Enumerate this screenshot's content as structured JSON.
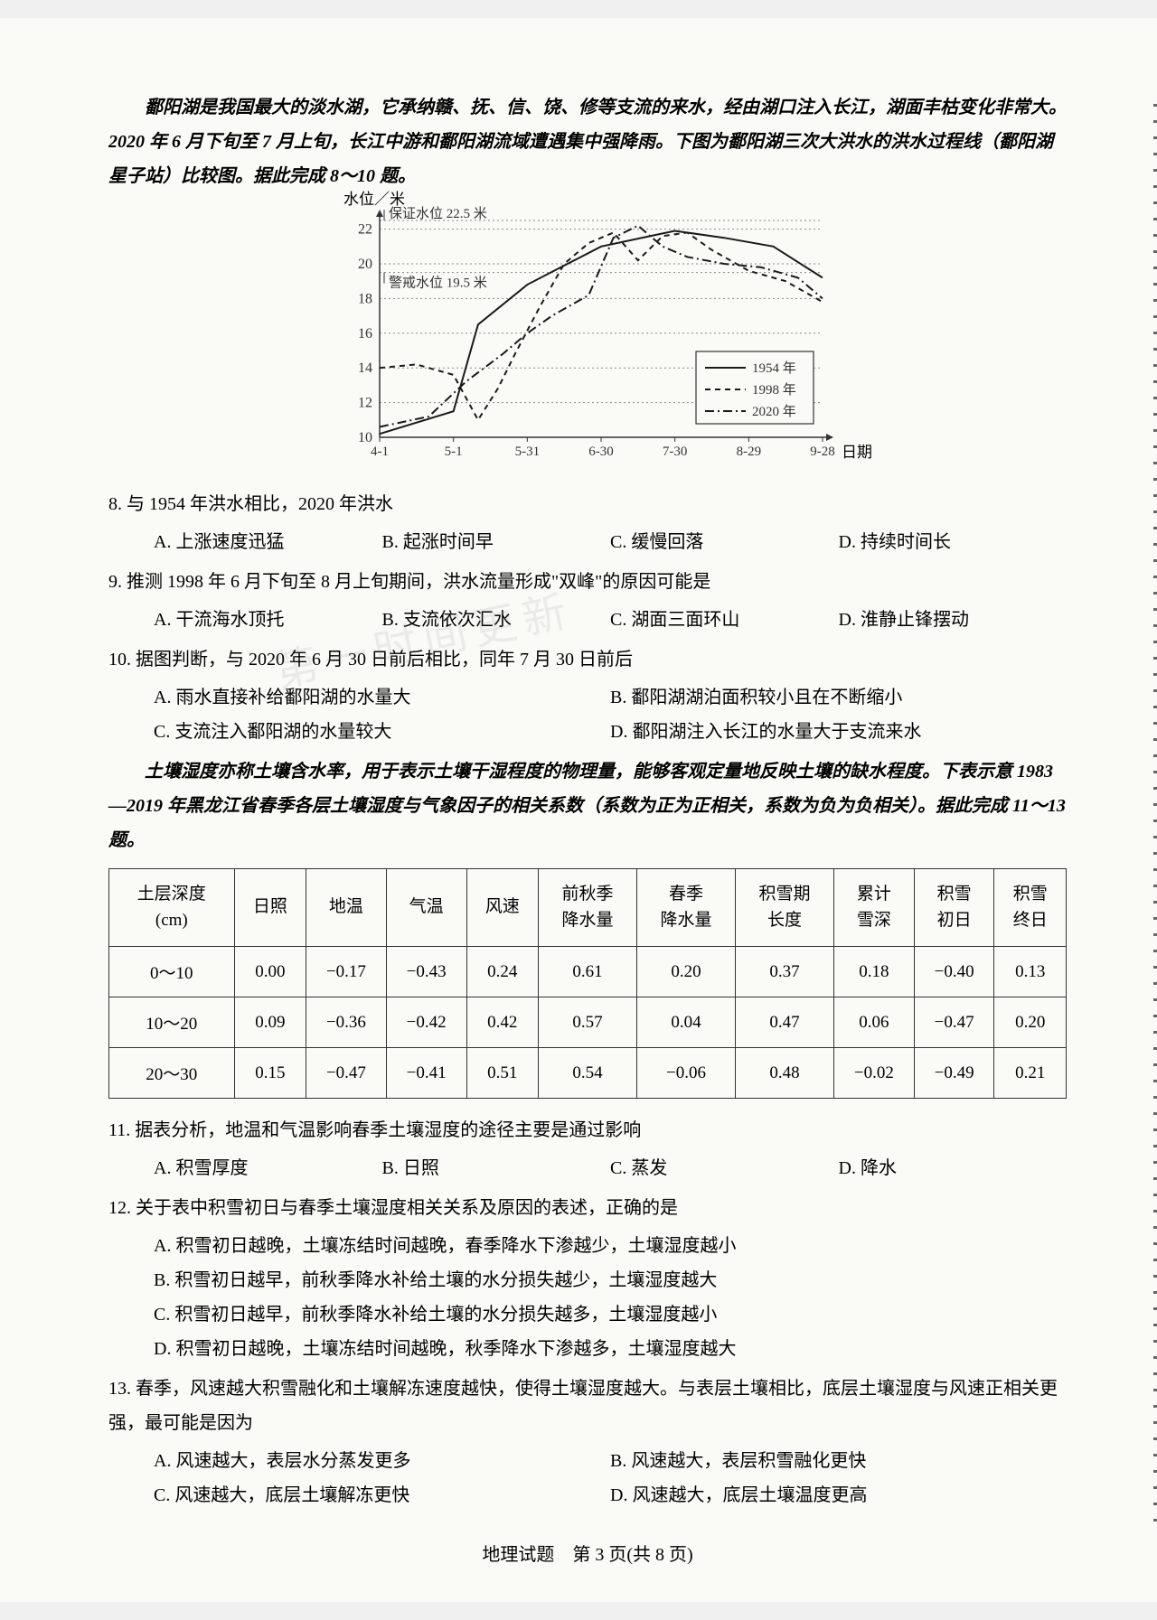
{
  "passage1": "鄱阳湖是我国最大的淡水湖，它承纳赣、抚、信、饶、修等支流的来水，经由湖口注入长江，湖面丰枯变化非常大。2020 年 6 月下旬至 7 月上旬，长江中游和鄱阳湖流域遭遇集中强降雨。下图为鄱阳湖三次大洪水的洪水过程线（鄱阳湖星子站）比较图。据此完成 8～10 题。",
  "chart": {
    "y_axis_label": "水位／米",
    "x_axis_label": "日期",
    "guarantee_label": "保证水位 22.5 米",
    "warning_label": "警戒水位 19.5 米",
    "guarantee_level": 22.5,
    "warning_level": 19.5,
    "y_ticks": [
      10,
      12,
      14,
      16,
      18,
      20,
      22
    ],
    "x_ticks": [
      "4-1",
      "5-1",
      "5-31",
      "6-30",
      "7-30",
      "8-29",
      "9-28"
    ],
    "legend": [
      {
        "label": "1954 年",
        "style": "solid"
      },
      {
        "label": "1998 年",
        "style": "dashed"
      },
      {
        "label": "2020 年",
        "style": "dashdot"
      }
    ],
    "series_1954": [
      [
        0,
        10.2
      ],
      [
        30,
        11.5
      ],
      [
        40,
        16.5
      ],
      [
        60,
        18.8
      ],
      [
        90,
        21.0
      ],
      [
        110,
        21.6
      ],
      [
        120,
        21.9
      ],
      [
        140,
        21.5
      ],
      [
        160,
        21.0
      ],
      [
        180,
        19.2
      ]
    ],
    "series_1998": [
      [
        0,
        14.0
      ],
      [
        15,
        14.2
      ],
      [
        30,
        13.6
      ],
      [
        40,
        11.0
      ],
      [
        48,
        12.8
      ],
      [
        55,
        14.8
      ],
      [
        65,
        17.5
      ],
      [
        75,
        20.0
      ],
      [
        85,
        21.2
      ],
      [
        95,
        21.8
      ],
      [
        105,
        20.2
      ],
      [
        115,
        21.6
      ],
      [
        125,
        21.8
      ],
      [
        135,
        20.8
      ],
      [
        150,
        19.6
      ],
      [
        165,
        19.0
      ],
      [
        180,
        17.8
      ]
    ],
    "series_2020": [
      [
        0,
        10.6
      ],
      [
        20,
        11.2
      ],
      [
        35,
        13.2
      ],
      [
        50,
        14.8
      ],
      [
        60,
        16.0
      ],
      [
        70,
        17.0
      ],
      [
        85,
        18.2
      ],
      [
        95,
        21.5
      ],
      [
        105,
        22.2
      ],
      [
        115,
        21.0
      ],
      [
        125,
        20.4
      ],
      [
        140,
        20.0
      ],
      [
        155,
        19.8
      ],
      [
        170,
        19.2
      ],
      [
        180,
        18.0
      ]
    ],
    "colors": {
      "axis": "#333333",
      "grid": "#888888",
      "line": "#1a1a1a",
      "background": "#fafaf7"
    }
  },
  "q8": {
    "stem": "8. 与 1954 年洪水相比，2020 年洪水",
    "a": "A. 上涨速度迅猛",
    "b": "B. 起涨时间早",
    "c": "C. 缓慢回落",
    "d": "D. 持续时间长"
  },
  "q9": {
    "stem": "9. 推测 1998 年 6 月下旬至 8 月上旬期间，洪水流量形成\"双峰\"的原因可能是",
    "a": "A. 干流海水顶托",
    "b": "B. 支流依次汇水",
    "c": "C. 湖面三面环山",
    "d": "D. 淮静止锋摆动"
  },
  "q10": {
    "stem": "10. 据图判断，与 2020 年 6 月 30 日前后相比，同年 7 月 30 日前后",
    "a": "A. 雨水直接补给鄱阳湖的水量大",
    "b": "B. 鄱阳湖湖泊面积较小且在不断缩小",
    "c": "C. 支流注入鄱阳湖的水量较大",
    "d": "D. 鄱阳湖注入长江的水量大于支流来水"
  },
  "passage2": "土壤湿度亦称土壤含水率，用于表示土壤干湿程度的物理量，能够客观定量地反映土壤的缺水程度。下表示意 1983—2019 年黑龙江省春季各层土壤湿度与气象因子的相关系数（系数为正为正相关，系数为负为负相关）。据此完成 11～13 题。",
  "table": {
    "headers": [
      "土层深度\n(cm)",
      "日照",
      "地温",
      "气温",
      "风速",
      "前秋季\n降水量",
      "春季\n降水量",
      "积雪期\n长度",
      "累计\n雪深",
      "积雪\n初日",
      "积雪\n终日"
    ],
    "rows": [
      [
        "0～10",
        "0.00",
        "−0.17",
        "−0.43",
        "0.24",
        "0.61",
        "0.20",
        "0.37",
        "0.18",
        "−0.40",
        "0.13"
      ],
      [
        "10～20",
        "0.09",
        "−0.36",
        "−0.42",
        "0.42",
        "0.57",
        "0.04",
        "0.47",
        "0.06",
        "−0.47",
        "0.20"
      ],
      [
        "20～30",
        "0.15",
        "−0.47",
        "−0.41",
        "0.51",
        "0.54",
        "−0.06",
        "0.48",
        "−0.02",
        "−0.49",
        "0.21"
      ]
    ]
  },
  "q11": {
    "stem": "11. 据表分析，地温和气温影响春季土壤湿度的途径主要是通过影响",
    "a": "A. 积雪厚度",
    "b": "B. 日照",
    "c": "C. 蒸发",
    "d": "D. 降水"
  },
  "q12": {
    "stem": "12. 关于表中积雪初日与春季土壤湿度相关关系及原因的表述，正确的是",
    "a": "A. 积雪初日越晚，土壤冻结时间越晚，春季降水下渗越少，土壤湿度越小",
    "b": "B. 积雪初日越早，前秋季降水补给土壤的水分损失越少，土壤湿度越大",
    "c": "C. 积雪初日越早，前秋季降水补给土壤的水分损失越多，土壤湿度越小",
    "d": "D. 积雪初日越晚，土壤冻结时间越晚，秋季降水下渗越多，土壤湿度越大"
  },
  "q13": {
    "stem": "13. 春季，风速越大积雪融化和土壤解冻速度越快，使得土壤湿度越大。与表层土壤相比，底层土壤湿度与风速正相关更强，最可能是因为",
    "a": "A. 风速越大，表层水分蒸发更多",
    "b": "B. 风速越大，表层积雪融化更快",
    "c": "C. 风速越大，底层土壤解冻更快",
    "d": "D. 风速越大，底层土壤温度更高"
  },
  "footer": "地理试题　第 3 页(共 8 页)"
}
